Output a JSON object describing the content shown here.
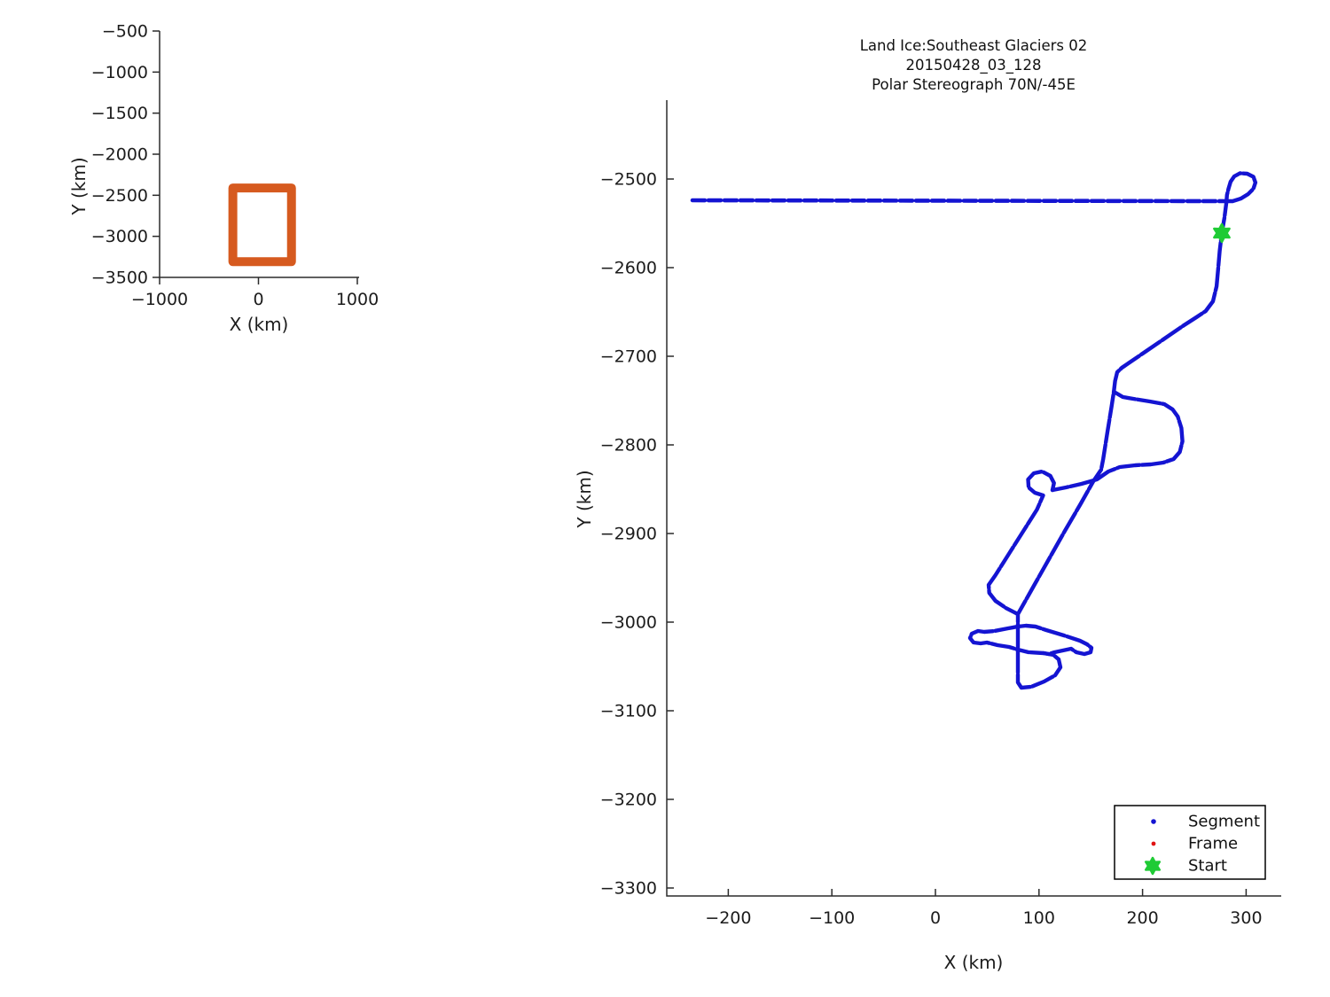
{
  "figure": {
    "kind": "flight-track-figure",
    "background": "#ffffff"
  },
  "colors": {
    "segment_blue": "#1414d2",
    "frame_red": "#e01313",
    "start_green": "#1fcb35",
    "coverage_orange": "#d65a1f",
    "axis": "#2b2b2b",
    "text": "#1c1c1c"
  },
  "chart_data": [
    {
      "type": "line",
      "name": "overview-plot",
      "title": "",
      "xlabel": "X (km)",
      "ylabel": "Y (km)",
      "xlim": [
        -1000,
        1018
      ],
      "ylim": [
        -500,
        -3500
      ],
      "xticks": [
        -1000,
        0,
        1000
      ],
      "yticks": [
        -500,
        -1000,
        -1500,
        -2000,
        -2500,
        -3000,
        -3500
      ],
      "grid": false,
      "series": [
        {
          "name": "coverage-rectangle",
          "style": "thick-rect",
          "rect": {
            "x0": -259,
            "x1": 334,
            "y0": -2411,
            "y1": -3309
          }
        }
      ]
    },
    {
      "type": "scatter",
      "name": "main-plot",
      "title_lines": [
        "Land Ice:Southeast  Glaciers 02",
        "20150428_03_128",
        "Polar Stereograph 70N/-45E"
      ],
      "xlabel": "X (km)",
      "ylabel": "Y (km)",
      "xlim": [
        -259.4,
        333.9
      ],
      "ylim": [
        -2411,
        -3309
      ],
      "xticks": [
        -200,
        -100,
        0,
        100,
        200,
        300
      ],
      "yticks": [
        -2500,
        -2600,
        -2700,
        -2800,
        -2900,
        -3000,
        -3100,
        -3200,
        -3300
      ],
      "grid": false,
      "legend_position": "south-east",
      "start_point": {
        "x": 276.5,
        "y": -2561
      },
      "series": [
        {
          "name": "transit-line",
          "style": "dashed",
          "points": [
            [
              -234.6,
              -2524
            ],
            [
              286.8,
              -2525
            ]
          ]
        },
        {
          "name": "main-track",
          "style": "dense",
          "points": [
            [
              287,
              -2525
            ],
            [
              295,
              -2522
            ],
            [
              302,
              -2517
            ],
            [
              307,
              -2511
            ],
            [
              309,
              -2504
            ],
            [
              307,
              -2497.5
            ],
            [
              301,
              -2494
            ],
            [
              294,
              -2493.5
            ],
            [
              288.5,
              -2497
            ],
            [
              285,
              -2503
            ],
            [
              283,
              -2511
            ],
            [
              281.5,
              -2518
            ],
            [
              281,
              -2526
            ],
            [
              279,
              -2544
            ],
            [
              276.5,
              -2561
            ],
            [
              274.5,
              -2581
            ],
            [
              273,
              -2601
            ],
            [
              271.5,
              -2621
            ],
            [
              268,
              -2638
            ],
            [
              261,
              -2649
            ],
            [
              252,
              -2656
            ],
            [
              240,
              -2665
            ],
            [
              220,
              -2681
            ],
            [
              200,
              -2697
            ],
            [
              180,
              -2713
            ],
            [
              175.5,
              -2718
            ],
            [
              173.5,
              -2728
            ],
            [
              172.3,
              -2740
            ],
            [
              170,
              -2757
            ],
            [
              166,
              -2786
            ],
            [
              162,
              -2816
            ],
            [
              160,
              -2828
            ],
            [
              152.5,
              -2841
            ],
            [
              140,
              -2867
            ],
            [
              125,
              -2897
            ],
            [
              110,
              -2928
            ],
            [
              95,
              -2959
            ],
            [
              79.6,
              -2991
            ],
            [
              79.6,
              -3068
            ],
            [
              83,
              -3074
            ],
            [
              92.5,
              -3073
            ],
            [
              105,
              -3067
            ],
            [
              115.6,
              -3060
            ],
            [
              120.7,
              -3051
            ],
            [
              119,
              -3042
            ],
            [
              113.9,
              -3037
            ],
            [
              104.5,
              -3035
            ],
            [
              89.9,
              -3034
            ]
          ]
        },
        {
          "name": "east-lobe",
          "style": "dense",
          "points": [
            [
              172.3,
              -2740
            ],
            [
              181,
              -2746
            ],
            [
              191,
              -2748
            ],
            [
              207,
              -2751
            ],
            [
              221,
              -2754
            ],
            [
              229,
              -2760
            ],
            [
              234,
              -2768
            ],
            [
              237.5,
              -2781
            ],
            [
              238.5,
              -2796
            ],
            [
              236,
              -2808
            ],
            [
              230,
              -2816
            ],
            [
              220,
              -2820
            ],
            [
              208,
              -2822
            ],
            [
              193,
              -2823
            ],
            [
              178,
              -2825
            ],
            [
              167,
              -2830
            ],
            [
              155.8,
              -2839
            ],
            [
              141,
              -2844
            ],
            [
              126,
              -2848
            ],
            [
              113,
              -2851
            ]
          ]
        },
        {
          "name": "small-loop-southwest-leg",
          "style": "dense",
          "points": [
            [
              113,
              -2851
            ],
            [
              114.5,
              -2843
            ],
            [
              111,
              -2835
            ],
            [
              103,
              -2830
            ],
            [
              95,
              -2832
            ],
            [
              89.5,
              -2839
            ],
            [
              90,
              -2848
            ],
            [
              96,
              -2854
            ],
            [
              104,
              -2857
            ],
            [
              98,
              -2873
            ],
            [
              85,
              -2897
            ],
            [
              72,
              -2921
            ],
            [
              58,
              -2947
            ],
            [
              51.4,
              -2958
            ],
            [
              52,
              -2967
            ],
            [
              58,
              -2976
            ],
            [
              68,
              -2984
            ],
            [
              79.6,
              -2991
            ]
          ]
        },
        {
          "name": "west-arm",
          "style": "dense",
          "points": [
            [
              79.6,
              -3005
            ],
            [
              70.2,
              -3007
            ],
            [
              57,
              -3010
            ],
            [
              47.1,
              -3011
            ],
            [
              41.1,
              -3010
            ],
            [
              35.1,
              -3013
            ],
            [
              33.4,
              -3018
            ],
            [
              36.8,
              -3023
            ],
            [
              43.7,
              -3024
            ],
            [
              49.7,
              -3023
            ],
            [
              60,
              -3026
            ],
            [
              71.1,
              -3028
            ],
            [
              79.6,
              -3031
            ],
            [
              89.9,
              -3034
            ]
          ]
        },
        {
          "name": "east-arm",
          "style": "dense",
          "points": [
            [
              79.6,
              -3005
            ],
            [
              87.3,
              -3004
            ],
            [
              96.7,
              -3005
            ],
            [
              107,
              -3009
            ],
            [
              124.1,
              -3015
            ],
            [
              139.6,
              -3021
            ],
            [
              146.4,
              -3025
            ],
            [
              150.7,
              -3029
            ],
            [
              149.8,
              -3034
            ],
            [
              143.8,
              -3036
            ],
            [
              136.1,
              -3034
            ],
            [
              131,
              -3030
            ],
            [
              123,
              -3032
            ],
            [
              115,
              -3034
            ],
            [
              109.6,
              -3036
            ],
            [
              104.5,
              -3035
            ]
          ]
        }
      ],
      "legend": {
        "items": [
          {
            "label": "Segment",
            "marker": "dot",
            "color": "#1414d2"
          },
          {
            "label": "Frame",
            "marker": "dot",
            "color": "#e01313"
          },
          {
            "label": "Start",
            "marker": "hexagram",
            "color": "#1fcb35"
          }
        ]
      }
    }
  ]
}
